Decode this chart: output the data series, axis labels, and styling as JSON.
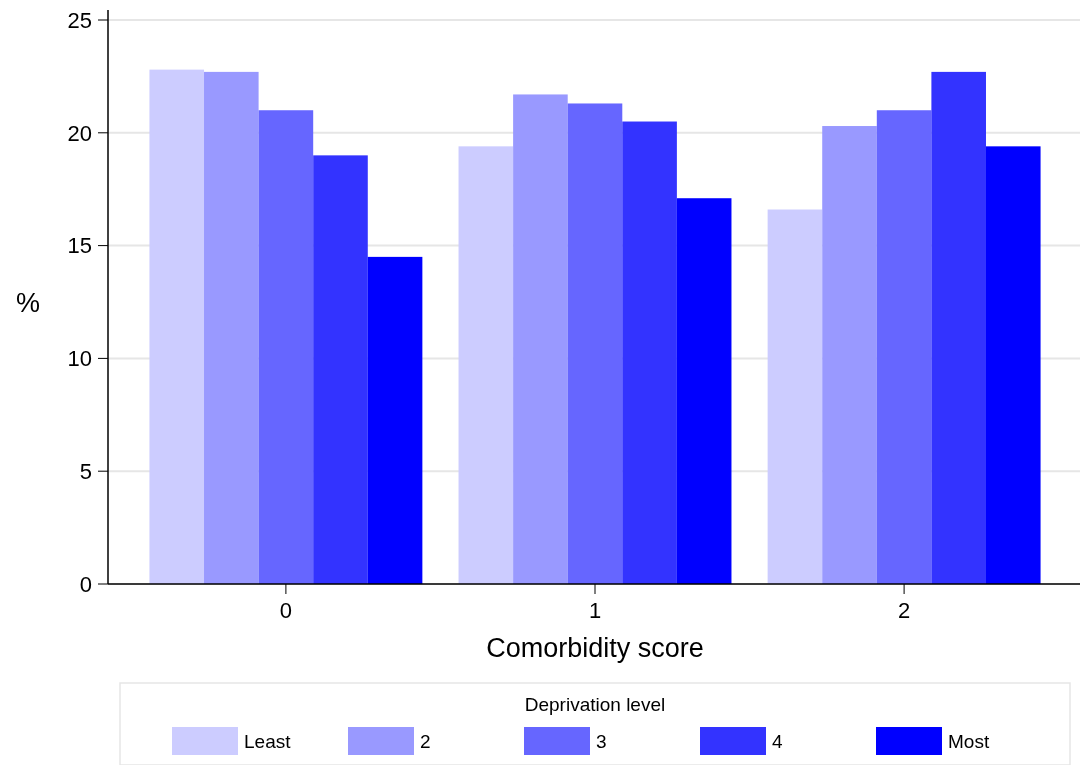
{
  "chart_data": {
    "type": "bar",
    "xlabel": "Comorbidity score",
    "ylabel": "%",
    "legend_title": "Deprivation level",
    "categories": [
      "0",
      "1",
      "2"
    ],
    "series": [
      {
        "name": "Least",
        "color": "#ccccff",
        "values": [
          22.8,
          19.4,
          16.6
        ]
      },
      {
        "name": "2",
        "color": "#9999ff",
        "values": [
          22.7,
          21.7,
          20.3
        ]
      },
      {
        "name": "3",
        "color": "#6666ff",
        "values": [
          21.0,
          21.3,
          21.0
        ]
      },
      {
        "name": "4",
        "color": "#3333ff",
        "values": [
          19.0,
          20.5,
          22.7
        ]
      },
      {
        "name": "Most",
        "color": "#0000ff",
        "values": [
          14.5,
          17.1,
          19.4
        ]
      }
    ],
    "ylim": [
      0,
      25
    ],
    "yticks": [
      0,
      5,
      10,
      15,
      20,
      25
    ],
    "grid": "y",
    "legend": "bottom"
  }
}
